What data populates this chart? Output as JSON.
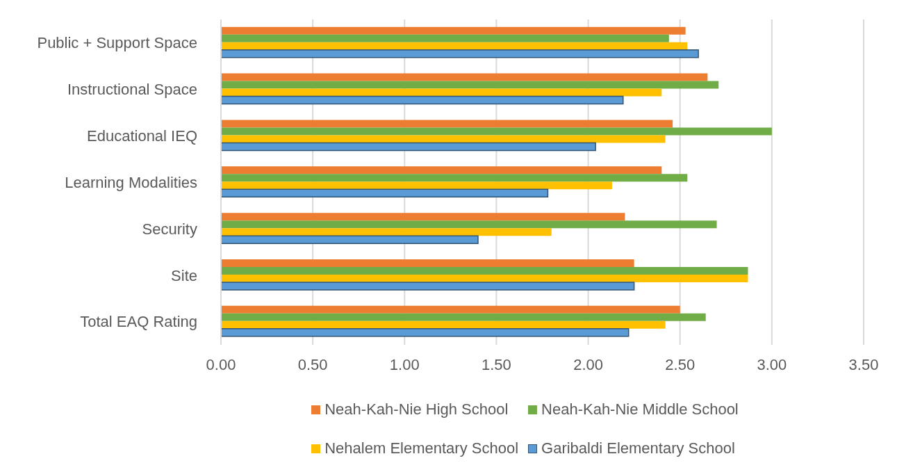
{
  "chart_data": {
    "type": "bar",
    "orientation": "horizontal",
    "categories": [
      "Public + Support Space",
      "Instructional Space",
      "Educational IEQ",
      "Learning Modalities",
      "Security",
      "Site",
      "Total EAQ Rating"
    ],
    "series": [
      {
        "name": "Neah-Kah-Nie High School",
        "color": "#ed7d31",
        "values": [
          2.53,
          2.65,
          2.46,
          2.4,
          2.2,
          2.25,
          2.5
        ]
      },
      {
        "name": "Neah-Kah-Nie Middle School",
        "color": "#70ad47",
        "values": [
          2.44,
          2.71,
          3.0,
          2.54,
          2.7,
          2.87,
          2.64
        ]
      },
      {
        "name": "Nehalem Elementary School",
        "color": "#ffc000",
        "values": [
          2.54,
          2.4,
          2.42,
          2.13,
          1.8,
          2.87,
          2.42
        ]
      },
      {
        "name": "Garibaldi Elementary School",
        "color": "#5b9bd5",
        "values": [
          2.6,
          2.19,
          2.04,
          1.78,
          1.4,
          2.25,
          2.22
        ]
      }
    ],
    "xlim": [
      0,
      3.5
    ],
    "xticks": [
      {
        "value": 0,
        "label": "0.00"
      },
      {
        "value": 0.5,
        "label": "0.50"
      },
      {
        "value": 1,
        "label": "1.00"
      },
      {
        "value": 1.5,
        "label": "1.50"
      },
      {
        "value": 2,
        "label": "2.00"
      },
      {
        "value": 2.5,
        "label": "2.50"
      },
      {
        "value": 3,
        "label": "3.00"
      },
      {
        "value": 3.5,
        "label": "3.50"
      }
    ],
    "grid": "x",
    "legend": "bottom"
  }
}
